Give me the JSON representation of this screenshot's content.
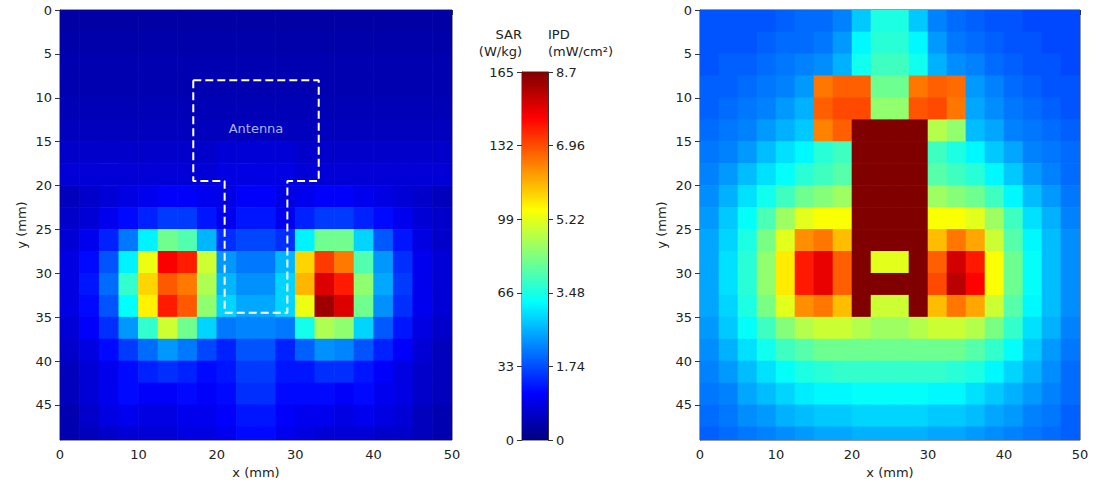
{
  "chart_data": [
    {
      "type": "heatmap",
      "xlabel": "x (mm)",
      "ylabel": "y (mm)",
      "xlim": [
        0,
        50
      ],
      "xticks": [
        0,
        10,
        20,
        30,
        40,
        50
      ],
      "ylim": [
        0,
        49
      ],
      "yticks": [
        0,
        5,
        10,
        15,
        20,
        25,
        30,
        35,
        40,
        45
      ],
      "x": [
        1.25,
        3.75,
        6.25,
        8.75,
        11.25,
        13.75,
        16.25,
        18.75,
        21.25,
        23.75,
        26.25,
        28.75,
        31.25,
        33.75,
        36.25,
        38.75,
        41.25,
        43.75,
        46.25,
        48.75
      ],
      "y": [
        1.25,
        3.75,
        6.25,
        8.75,
        11.25,
        13.75,
        16.25,
        18.75,
        21.25,
        23.75,
        26.25,
        28.75,
        31.25,
        33.75,
        36.25,
        38.75,
        41.25,
        43.75,
        46.25,
        48.75
      ],
      "clim": [
        0,
        165
      ],
      "values": [
        [
          6,
          6,
          6,
          6,
          6,
          6,
          6,
          6,
          6,
          6,
          6,
          6,
          6,
          6,
          6,
          6,
          6,
          6,
          6,
          6
        ],
        [
          7,
          7,
          7,
          7,
          7,
          7,
          7,
          7,
          7,
          7,
          7,
          7,
          7,
          7,
          7,
          7,
          7,
          7,
          7,
          7
        ],
        [
          8,
          8,
          8,
          8,
          8,
          8,
          8,
          8,
          8,
          8,
          8,
          8,
          8,
          8,
          8,
          8,
          8,
          8,
          8,
          8
        ],
        [
          8,
          8,
          8,
          8,
          8,
          8,
          8,
          8,
          8,
          8,
          8,
          8,
          8,
          8,
          8,
          8,
          8,
          8,
          8,
          8
        ],
        [
          9,
          9,
          9,
          9,
          9,
          9,
          9,
          9,
          9,
          9,
          9,
          9,
          9,
          9,
          9,
          9,
          9,
          9,
          9,
          9
        ],
        [
          10,
          10,
          10,
          10,
          10,
          10,
          10,
          10,
          10,
          10,
          10,
          10,
          10,
          10,
          10,
          10,
          10,
          10,
          10,
          10
        ],
        [
          12,
          12,
          12,
          12,
          12,
          12,
          12,
          12,
          14,
          14,
          14,
          14,
          12,
          12,
          12,
          12,
          12,
          12,
          12,
          12
        ],
        [
          14,
          14,
          14,
          14,
          14,
          14,
          14,
          14,
          16,
          16,
          16,
          16,
          14,
          14,
          14,
          14,
          14,
          14,
          14,
          14
        ],
        [
          10,
          12,
          14,
          16,
          18,
          20,
          20,
          18,
          16,
          20,
          20,
          16,
          18,
          20,
          20,
          18,
          16,
          14,
          12,
          10
        ],
        [
          12,
          14,
          18,
          22,
          26,
          30,
          30,
          24,
          18,
          24,
          24,
          18,
          26,
          30,
          30,
          26,
          22,
          18,
          14,
          12
        ],
        [
          14,
          18,
          26,
          40,
          60,
          80,
          75,
          50,
          28,
          32,
          32,
          28,
          60,
          80,
          80,
          55,
          35,
          24,
          16,
          12
        ],
        [
          16,
          22,
          34,
          60,
          100,
          145,
          140,
          95,
          45,
          40,
          40,
          50,
          110,
          135,
          125,
          75,
          45,
          28,
          18,
          14
        ],
        [
          16,
          24,
          38,
          70,
          110,
          130,
          125,
          90,
          50,
          44,
          44,
          55,
          115,
          150,
          140,
          85,
          48,
          30,
          18,
          14
        ],
        [
          16,
          22,
          34,
          62,
          105,
          140,
          130,
          85,
          55,
          48,
          48,
          55,
          100,
          160,
          150,
          80,
          44,
          28,
          18,
          14
        ],
        [
          14,
          20,
          28,
          45,
          70,
          95,
          80,
          55,
          40,
          42,
          42,
          40,
          65,
          90,
          85,
          55,
          35,
          24,
          16,
          12
        ],
        [
          12,
          16,
          22,
          30,
          38,
          45,
          40,
          32,
          26,
          34,
          34,
          26,
          36,
          44,
          42,
          34,
          26,
          20,
          14,
          10
        ],
        [
          10,
          14,
          18,
          22,
          26,
          28,
          26,
          22,
          24,
          30,
          30,
          24,
          24,
          28,
          28,
          24,
          20,
          16,
          12,
          10
        ],
        [
          10,
          14,
          18,
          22,
          20,
          20,
          22,
          20,
          22,
          28,
          28,
          22,
          22,
          22,
          20,
          22,
          18,
          16,
          12,
          10
        ],
        [
          8,
          12,
          16,
          18,
          16,
          16,
          18,
          18,
          20,
          24,
          24,
          20,
          18,
          18,
          16,
          18,
          16,
          14,
          10,
          8
        ],
        [
          8,
          10,
          12,
          14,
          14,
          14,
          16,
          16,
          18,
          22,
          22,
          18,
          16,
          14,
          14,
          14,
          12,
          12,
          10,
          8
        ]
      ],
      "annotation": {
        "text": "Antenna",
        "at": [
          25,
          13.5
        ],
        "outline": [
          [
            17,
            8
          ],
          [
            33,
            8
          ],
          [
            33,
            19.5
          ],
          [
            29,
            19.5
          ],
          [
            29,
            34.5
          ],
          [
            21,
            34.5
          ],
          [
            21,
            19.5
          ],
          [
            17,
            19.5
          ],
          [
            17,
            8
          ]
        ]
      }
    },
    {
      "type": "colorbar",
      "axes": [
        {
          "label": "SAR (W/kg)",
          "lim": [
            0,
            165
          ],
          "ticks": [
            0,
            33,
            66,
            99,
            132,
            165
          ]
        },
        {
          "label": "IPD (mW/cm²)",
          "lim": [
            0,
            8.7
          ],
          "ticks": [
            0,
            1.74,
            3.48,
            5.22,
            6.96,
            8.7
          ]
        }
      ]
    },
    {
      "type": "heatmap",
      "xlabel": "x (mm)",
      "ylabel": "y (mm)",
      "xlim": [
        0,
        50
      ],
      "xticks": [
        0,
        10,
        20,
        30,
        40,
        50
      ],
      "ylim": [
        0,
        49
      ],
      "yticks": [
        0,
        5,
        10,
        15,
        20,
        25,
        30,
        35,
        40,
        45
      ],
      "x": [
        1.25,
        3.75,
        6.25,
        8.75,
        11.25,
        13.75,
        16.25,
        18.75,
        21.25,
        23.75,
        26.25,
        28.75,
        31.25,
        33.75,
        36.25,
        38.75,
        41.25,
        43.75,
        46.25,
        48.75
      ],
      "y": [
        1.25,
        3.75,
        6.25,
        8.75,
        11.25,
        13.75,
        16.25,
        18.75,
        21.25,
        23.75,
        26.25,
        28.75,
        31.25,
        33.75,
        36.25,
        38.75,
        41.25,
        43.75,
        46.25,
        48.75
      ],
      "clim": [
        0,
        8.7
      ],
      "values": [
        [
          1.8,
          1.8,
          1.8,
          1.8,
          1.9,
          2.0,
          2.0,
          2.2,
          2.8,
          3.5,
          3.5,
          2.8,
          2.2,
          2.0,
          1.9,
          1.8,
          1.8,
          1.7,
          1.7,
          1.7
        ],
        [
          1.8,
          1.8,
          1.8,
          1.9,
          2.0,
          2.0,
          2.1,
          2.4,
          3.2,
          3.6,
          3.6,
          3.2,
          2.4,
          2.1,
          2.0,
          1.9,
          1.8,
          1.8,
          1.7,
          1.7
        ],
        [
          1.8,
          1.9,
          1.9,
          2.0,
          2.1,
          2.2,
          2.3,
          2.6,
          3.4,
          3.8,
          3.8,
          3.4,
          2.6,
          2.3,
          2.2,
          2.0,
          1.9,
          1.8,
          1.8,
          1.7
        ],
        [
          1.9,
          1.9,
          2.0,
          2.1,
          2.2,
          2.4,
          6.6,
          6.8,
          6.8,
          4.2,
          4.2,
          6.6,
          6.8,
          6.7,
          2.4,
          2.2,
          2.0,
          1.9,
          1.8,
          1.8
        ],
        [
          1.9,
          2.0,
          2.1,
          2.2,
          2.4,
          2.6,
          6.8,
          7.0,
          7.0,
          4.5,
          4.5,
          6.9,
          7.0,
          6.6,
          2.5,
          2.3,
          2.1,
          2.0,
          1.9,
          1.8
        ],
        [
          2.0,
          2.1,
          2.2,
          2.4,
          2.6,
          2.8,
          6.5,
          6.8,
          8.7,
          8.7,
          8.7,
          8.7,
          4.8,
          4.5,
          2.7,
          2.5,
          2.2,
          2.1,
          2.0,
          1.9
        ],
        [
          2.1,
          2.2,
          2.4,
          2.7,
          3.0,
          3.2,
          3.6,
          3.8,
          8.7,
          8.7,
          8.7,
          8.7,
          3.8,
          3.5,
          3.2,
          2.8,
          2.5,
          2.2,
          2.1,
          2.0
        ],
        [
          2.2,
          2.4,
          2.7,
          3.0,
          3.3,
          3.6,
          3.8,
          4.0,
          8.7,
          8.7,
          8.7,
          8.7,
          4.0,
          3.8,
          3.6,
          3.2,
          2.8,
          2.4,
          2.2,
          2.0
        ],
        [
          2.3,
          2.6,
          3.0,
          3.4,
          3.8,
          4.2,
          4.4,
          4.6,
          8.7,
          8.7,
          8.7,
          8.7,
          4.6,
          4.4,
          4.2,
          3.8,
          3.2,
          2.7,
          2.4,
          2.1
        ],
        [
          2.4,
          2.8,
          3.3,
          3.9,
          4.6,
          5.2,
          5.4,
          5.4,
          8.7,
          8.7,
          8.7,
          8.7,
          5.4,
          5.4,
          5.2,
          4.6,
          3.8,
          3.0,
          2.6,
          2.2
        ],
        [
          2.5,
          2.9,
          3.5,
          4.3,
          5.2,
          6.4,
          6.6,
          6.0,
          8.7,
          8.7,
          8.7,
          8.7,
          6.0,
          6.6,
          6.2,
          5.0,
          4.0,
          3.2,
          2.7,
          2.3
        ],
        [
          2.5,
          3.0,
          3.6,
          4.5,
          5.6,
          7.4,
          7.8,
          6.8,
          8.7,
          5.2,
          5.2,
          8.7,
          6.8,
          8.0,
          7.4,
          5.4,
          4.2,
          3.3,
          2.7,
          2.3
        ],
        [
          2.5,
          3.0,
          3.6,
          4.5,
          5.6,
          7.4,
          7.8,
          6.8,
          8.7,
          8.7,
          8.7,
          8.7,
          7.0,
          8.2,
          7.6,
          5.4,
          4.2,
          3.3,
          2.7,
          2.3
        ],
        [
          2.5,
          2.9,
          3.5,
          4.3,
          5.2,
          6.4,
          6.6,
          6.0,
          8.7,
          5.0,
          5.0,
          8.7,
          6.0,
          6.6,
          6.2,
          5.0,
          4.0,
          3.2,
          2.7,
          2.3
        ],
        [
          2.4,
          2.8,
          3.3,
          3.8,
          4.4,
          4.8,
          5.0,
          5.0,
          4.8,
          4.6,
          4.6,
          4.8,
          5.0,
          5.0,
          4.8,
          4.3,
          3.7,
          3.0,
          2.6,
          2.2
        ],
        [
          2.3,
          2.6,
          3.0,
          3.4,
          3.8,
          4.0,
          4.2,
          4.2,
          4.2,
          4.2,
          4.2,
          4.2,
          4.2,
          4.2,
          4.0,
          3.7,
          3.3,
          2.8,
          2.4,
          2.1
        ],
        [
          2.2,
          2.4,
          2.7,
          3.0,
          3.3,
          3.5,
          3.6,
          3.7,
          3.7,
          3.7,
          3.7,
          3.7,
          3.7,
          3.6,
          3.5,
          3.2,
          2.9,
          2.6,
          2.3,
          2.0
        ],
        [
          2.1,
          2.2,
          2.5,
          2.7,
          2.9,
          3.1,
          3.2,
          3.2,
          3.3,
          3.3,
          3.3,
          3.3,
          3.2,
          3.2,
          3.0,
          2.8,
          2.6,
          2.4,
          2.2,
          2.0
        ],
        [
          2.0,
          2.1,
          2.3,
          2.4,
          2.6,
          2.7,
          2.8,
          2.8,
          2.9,
          2.9,
          2.9,
          2.9,
          2.8,
          2.8,
          2.7,
          2.5,
          2.4,
          2.2,
          2.1,
          1.9
        ],
        [
          1.9,
          2.0,
          2.1,
          2.2,
          2.3,
          2.4,
          2.5,
          2.5,
          2.6,
          2.6,
          2.6,
          2.6,
          2.5,
          2.5,
          2.4,
          2.3,
          2.2,
          2.1,
          2.0,
          1.9
        ]
      ]
    }
  ]
}
